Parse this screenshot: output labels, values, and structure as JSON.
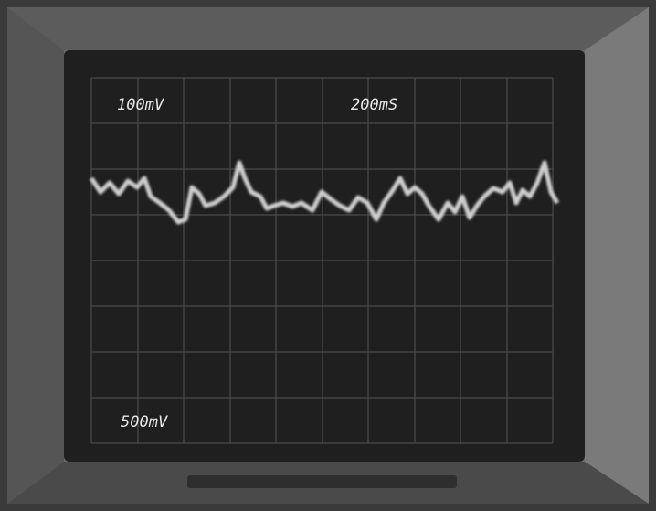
{
  "screen": {
    "channel_1_scale": "100mV",
    "timebase": "200mS",
    "channel_2_scale": "500mV"
  }
}
